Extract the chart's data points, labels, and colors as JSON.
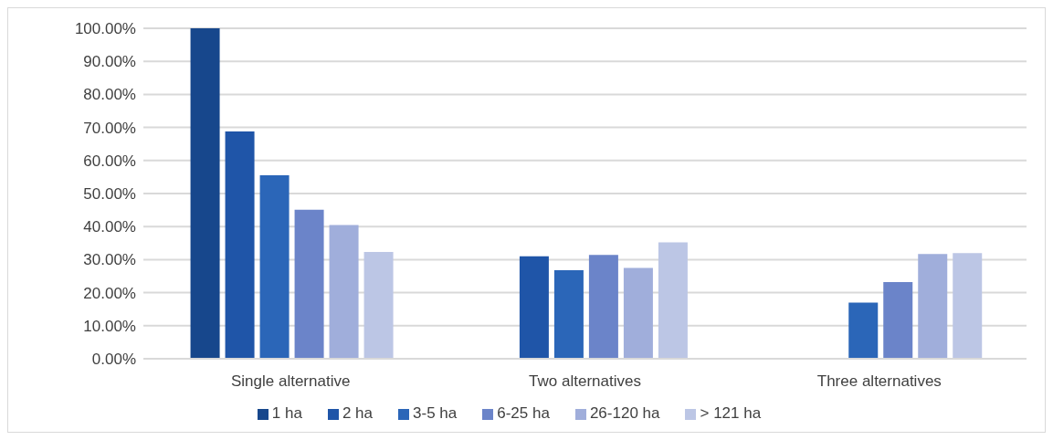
{
  "chart_data": {
    "type": "bar",
    "categories": [
      "Single alternative",
      "Two alternatives",
      "Three alternatives"
    ],
    "series": [
      {
        "name": "1 ha",
        "color": "#17478c",
        "values": [
          100,
          null,
          null
        ]
      },
      {
        "name": "2 ha",
        "color": "#1f55a8",
        "values": [
          68.8,
          31.0,
          null
        ]
      },
      {
        "name": "3-5 ha",
        "color": "#2b66b8",
        "values": [
          55.5,
          26.8,
          17.0
        ]
      },
      {
        "name": "6-25 ha",
        "color": "#6b84c9",
        "values": [
          45.1,
          31.4,
          23.2
        ]
      },
      {
        "name": "26-120 ha",
        "color": "#a0aedb",
        "values": [
          40.5,
          27.5,
          31.7
        ]
      },
      {
        "name": "> 121 ha",
        "color": "#bcc6e5",
        "values": [
          32.3,
          35.2,
          32.0
        ]
      }
    ],
    "ylim": [
      0,
      100
    ],
    "yticks": [
      {
        "value": 0,
        "label": "0.00%"
      },
      {
        "value": 10,
        "label": "10.00%"
      },
      {
        "value": 20,
        "label": "20.00%"
      },
      {
        "value": 30,
        "label": "30.00%"
      },
      {
        "value": 40,
        "label": "40.00%"
      },
      {
        "value": 50,
        "label": "50.00%"
      },
      {
        "value": 60,
        "label": "60.00%"
      },
      {
        "value": 70,
        "label": "70.00%"
      },
      {
        "value": 80,
        "label": "80.00%"
      },
      {
        "value": 90,
        "label": "90.00%"
      },
      {
        "value": 100,
        "label": "100.00%"
      }
    ],
    "grid": "y",
    "legend": "bottom"
  }
}
